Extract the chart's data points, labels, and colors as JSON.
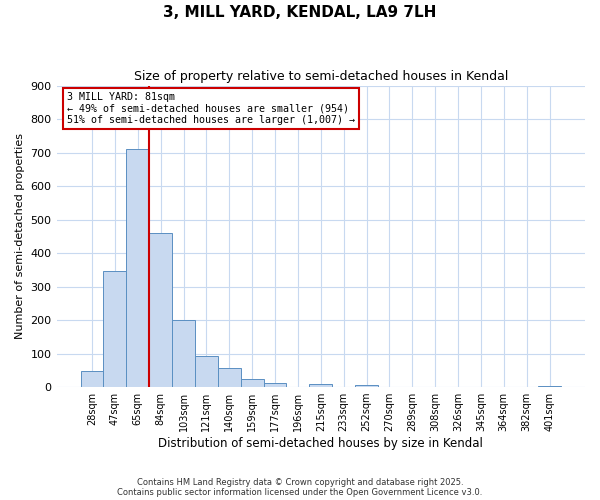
{
  "title": "3, MILL YARD, KENDAL, LA9 7LH",
  "subtitle": "Size of property relative to semi-detached houses in Kendal",
  "xlabel": "Distribution of semi-detached houses by size in Kendal",
  "ylabel": "Number of semi-detached properties",
  "bar_labels": [
    "28sqm",
    "47sqm",
    "65sqm",
    "84sqm",
    "103sqm",
    "121sqm",
    "140sqm",
    "159sqm",
    "177sqm",
    "196sqm",
    "215sqm",
    "233sqm",
    "252sqm",
    "270sqm",
    "289sqm",
    "308sqm",
    "326sqm",
    "345sqm",
    "364sqm",
    "382sqm",
    "401sqm"
  ],
  "bar_values": [
    48,
    345,
    710,
    460,
    200,
    92,
    57,
    25,
    12,
    0,
    8,
    0,
    5,
    0,
    0,
    0,
    0,
    0,
    0,
    0,
    3
  ],
  "bar_color": "#c8d9f0",
  "bar_edge_color": "#5a8fc2",
  "vline_x_idx": 2,
  "vline_color": "#cc0000",
  "annotation_title": "3 MILL YARD: 81sqm",
  "annotation_line1": "← 49% of semi-detached houses are smaller (954)",
  "annotation_line2": "51% of semi-detached houses are larger (1,007) →",
  "annotation_box_color": "#ffffff",
  "annotation_box_edge": "#cc0000",
  "ylim": [
    0,
    900
  ],
  "yticks": [
    0,
    100,
    200,
    300,
    400,
    500,
    600,
    700,
    800,
    900
  ],
  "footer1": "Contains HM Land Registry data © Crown copyright and database right 2025.",
  "footer2": "Contains public sector information licensed under the Open Government Licence v3.0.",
  "bg_color": "#ffffff",
  "grid_color": "#c8d9f0"
}
